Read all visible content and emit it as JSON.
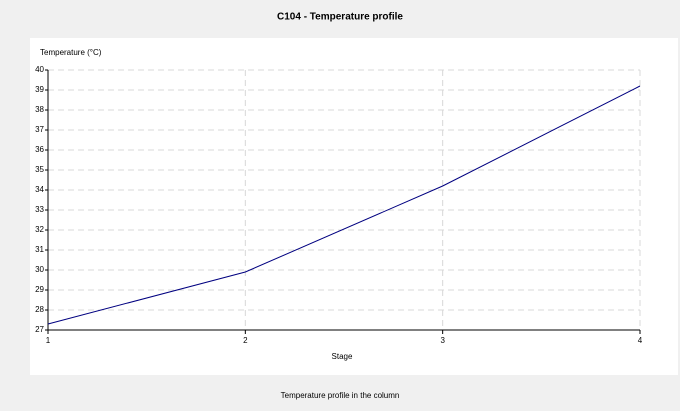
{
  "chart_data": {
    "type": "line",
    "title": "C104 - Temperature profile",
    "y_label": "Temperature (°C)",
    "x_label": "Stage",
    "footer": "Temperature profile in the column",
    "x": [
      1,
      2,
      3,
      4
    ],
    "series": [
      {
        "name": "Temperature",
        "color": "#000080",
        "values": [
          27.3,
          29.9,
          34.2,
          39.2
        ]
      }
    ],
    "xlim": [
      1,
      4
    ],
    "xticks": [
      1,
      2,
      3,
      4
    ],
    "ylim": [
      27,
      40
    ],
    "yticks": [
      27,
      28,
      29,
      30,
      31,
      32,
      33,
      34,
      35,
      36,
      37,
      38,
      39,
      40
    ],
    "grid": true
  }
}
